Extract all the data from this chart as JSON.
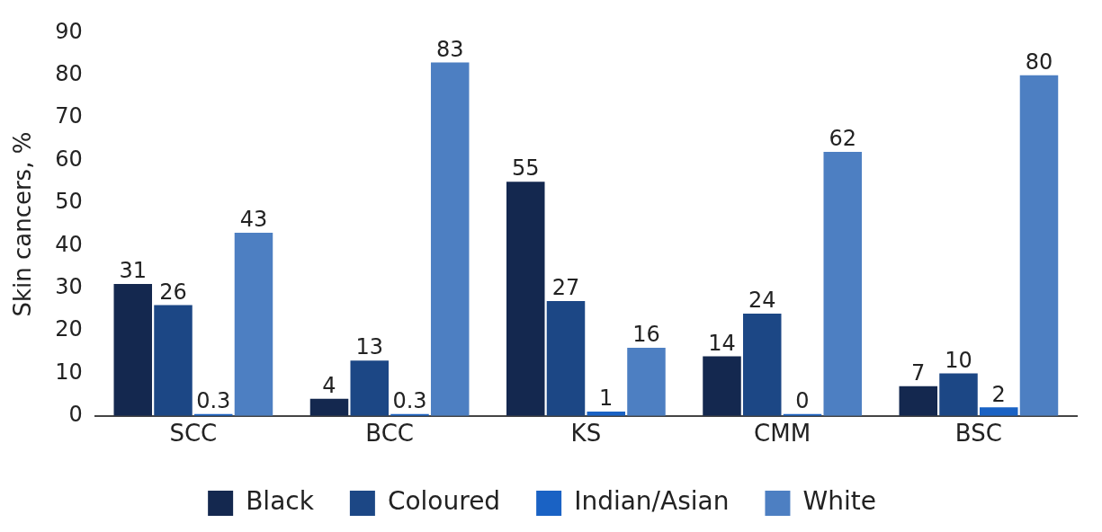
{
  "chart_data": {
    "type": "bar",
    "ylabel": "Skin cancers, %",
    "categories": [
      "SCC",
      "BCC",
      "KS",
      "CMM",
      "BSC"
    ],
    "series": [
      {
        "name": "Black",
        "color": "#14284f",
        "values": [
          31,
          4,
          55,
          14,
          7
        ]
      },
      {
        "name": "Coloured",
        "color": "#1c4785",
        "values": [
          26,
          13,
          27,
          24,
          10
        ]
      },
      {
        "name": "Indian/Asian",
        "color": "#1a62c4",
        "values": [
          0.3,
          0.3,
          1,
          0,
          2
        ]
      },
      {
        "name": "White",
        "color": "#4d7fc2",
        "values": [
          43,
          83,
          16,
          62,
          80
        ]
      }
    ],
    "ylim": [
      0,
      90
    ],
    "yticks": [
      0,
      10,
      20,
      30,
      40,
      50,
      60,
      70,
      80,
      90
    ],
    "grid": false,
    "legend": "bottom",
    "data_labels": true
  }
}
